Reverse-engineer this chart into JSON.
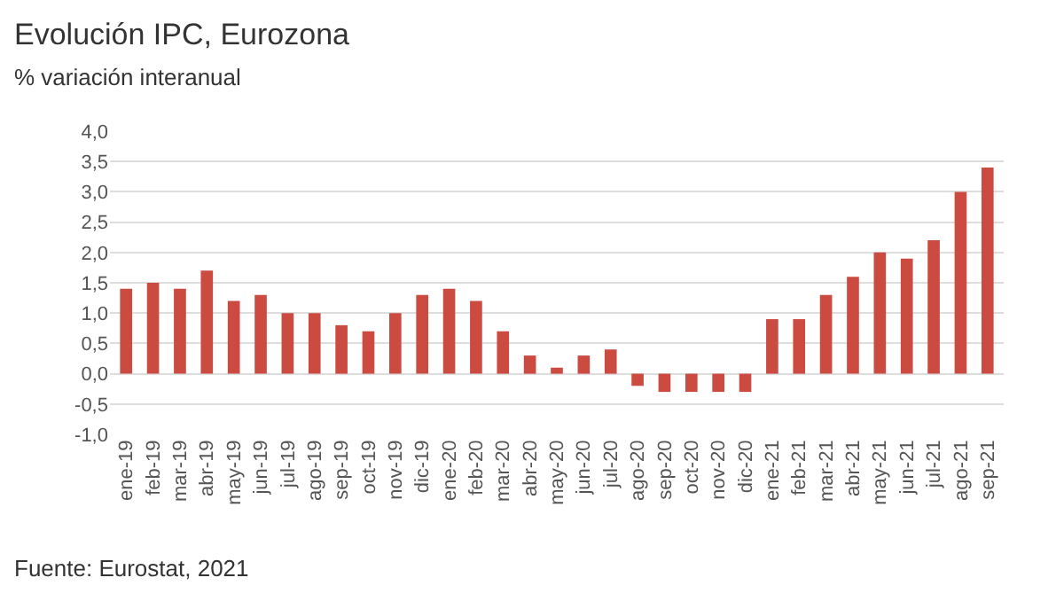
{
  "chart_data": {
    "type": "bar",
    "title": "Evolución IPC, Eurozona",
    "subtitle": "% variación interanual",
    "categories": [
      "ene-19",
      "feb-19",
      "mar-19",
      "abr-19",
      "may-19",
      "jun-19",
      "jul-19",
      "ago-19",
      "sep-19",
      "oct-19",
      "nov-19",
      "dic-19",
      "ene-20",
      "feb-20",
      "mar-20",
      "abr-20",
      "may-20",
      "jun-20",
      "jul-20",
      "ago-20",
      "sep-20",
      "oct-20",
      "nov-20",
      "dic-20",
      "ene-21",
      "feb-21",
      "mar-21",
      "abr-21",
      "may-21",
      "jun-21",
      "jul-21",
      "ago-21",
      "sep-21"
    ],
    "values": [
      1.4,
      1.5,
      1.4,
      1.7,
      1.2,
      1.3,
      1.0,
      1.0,
      0.8,
      0.7,
      1.0,
      1.3,
      1.4,
      1.2,
      0.7,
      0.3,
      0.1,
      0.3,
      0.4,
      -0.2,
      -0.3,
      -0.3,
      -0.3,
      -0.3,
      0.9,
      0.9,
      1.3,
      1.6,
      2.0,
      1.9,
      2.2,
      3.0,
      3.4
    ],
    "color": "#cc4b41",
    "ylim": [
      -1,
      4
    ],
    "yticks": [
      {
        "value": -1,
        "label": "-1,0"
      },
      {
        "value": -0.5,
        "label": "-0,5"
      },
      {
        "value": 0,
        "label": "0,0"
      },
      {
        "value": 0.5,
        "label": "0,5"
      },
      {
        "value": 1,
        "label": "1,0"
      },
      {
        "value": 1.5,
        "label": "1,5"
      },
      {
        "value": 2,
        "label": "2,0"
      },
      {
        "value": 2.5,
        "label": "2,5"
      },
      {
        "value": 3,
        "label": "3,0"
      },
      {
        "value": 3.5,
        "label": "3,5"
      },
      {
        "value": 4,
        "label": "4,0"
      }
    ],
    "grid": "y",
    "annotations": [
      "Fuente: Eurostat, 2021"
    ]
  }
}
